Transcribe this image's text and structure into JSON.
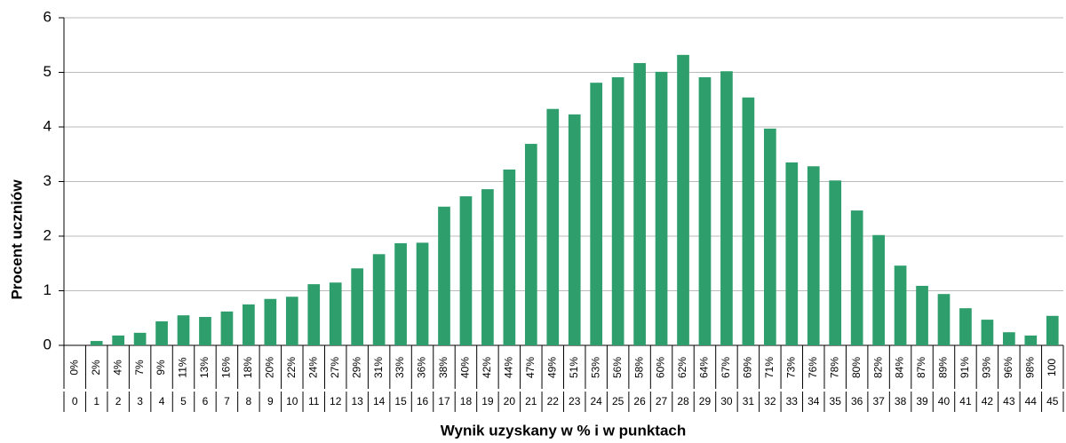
{
  "chart_data": {
    "type": "bar",
    "y_label": "Procent uczniów",
    "x_label": "Wynik uzyskany w % i w punktach",
    "categories": [
      "0",
      "1",
      "2",
      "3",
      "4",
      "5",
      "6",
      "7",
      "8",
      "9",
      "10",
      "11",
      "12",
      "13",
      "14",
      "15",
      "16",
      "17",
      "18",
      "19",
      "20",
      "21",
      "22",
      "23",
      "24",
      "25",
      "26",
      "27",
      "28",
      "29",
      "30",
      "31",
      "32",
      "33",
      "34",
      "35",
      "36",
      "37",
      "38",
      "39",
      "40",
      "41",
      "42",
      "43",
      "44",
      "45"
    ],
    "percent_labels": [
      "0%",
      "2%",
      "4%",
      "7%",
      "9%",
      "11%",
      "13%",
      "16%",
      "18%",
      "20%",
      "22%",
      "24%",
      "27%",
      "29%",
      "31%",
      "33%",
      "36%",
      "38%",
      "40%",
      "42%",
      "44%",
      "47%",
      "49%",
      "51%",
      "53%",
      "56%",
      "58%",
      "60%",
      "62%",
      "64%",
      "67%",
      "69%",
      "71%",
      "73%",
      "76%",
      "78%",
      "80%",
      "82%",
      "84%",
      "87%",
      "89%",
      "91%",
      "93%",
      "96%",
      "98%",
      "100"
    ],
    "values": [
      0,
      0.08,
      0.18,
      0.23,
      0.44,
      0.55,
      0.52,
      0.62,
      0.75,
      0.85,
      0.89,
      1.12,
      1.15,
      1.41,
      1.67,
      1.87,
      1.88,
      2.54,
      2.73,
      2.86,
      3.22,
      3.69,
      4.33,
      4.23,
      4.81,
      4.91,
      5.17,
      5.01,
      5.32,
      4.91,
      5.02,
      4.54,
      3.97,
      3.35,
      3.28,
      3.02,
      2.47,
      2.02,
      1.46,
      1.09,
      0.94,
      0.68,
      0.47,
      0.24,
      0.18,
      0.54
    ],
    "color": "#2e9e6c",
    "ylim": [
      0,
      6
    ],
    "yticks": [
      0,
      1,
      2,
      3,
      4,
      5,
      6
    ],
    "grid": true
  }
}
